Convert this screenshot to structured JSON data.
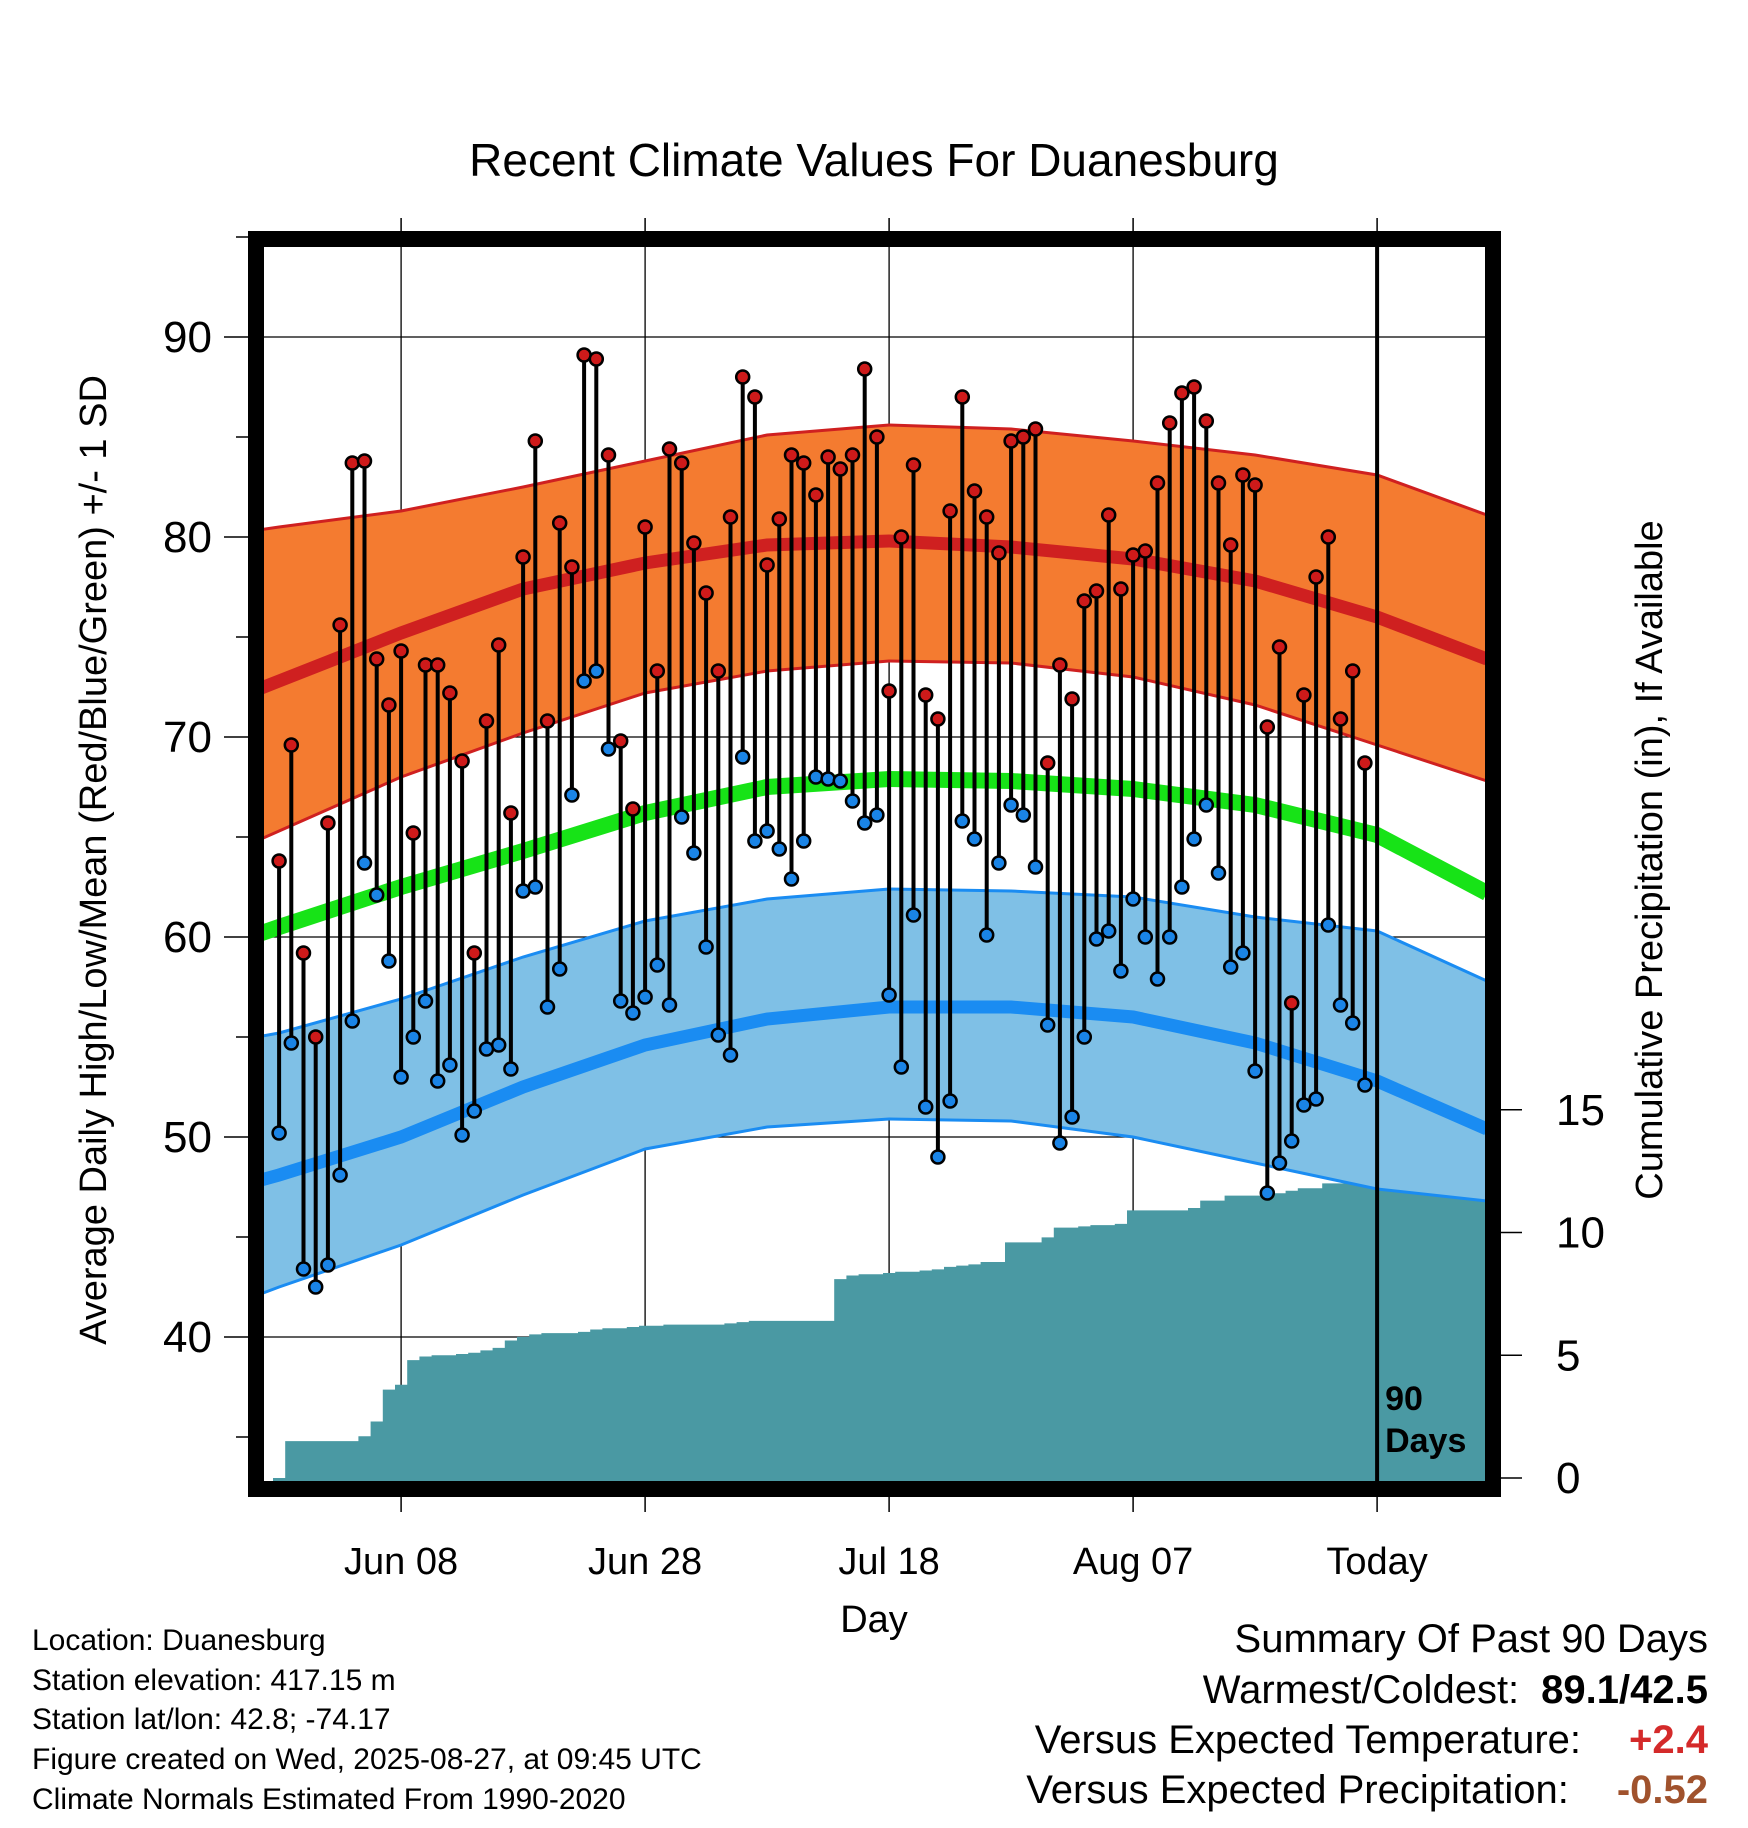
{
  "chart_data": {
    "type": "line",
    "title": "Recent Climate Values For Duanesburg",
    "xlabel": "Day",
    "ylabel": "Average Daily High/Low/Mean (Red/Blue/Green) +/- 1 SD",
    "y2label": "Cumulative Precipitation (in), If Available",
    "ylim": [
      33,
      95
    ],
    "y2lim": [
      0,
      29.4
    ],
    "yticks": [
      40,
      50,
      60,
      70,
      80,
      90
    ],
    "y2ticks": [
      0,
      5,
      10,
      15
    ],
    "xlim": [
      -10.3,
      91
    ],
    "xticks": [
      {
        "x": 10,
        "label": "Jun 08"
      },
      {
        "x": 30,
        "label": "Jun 28"
      },
      {
        "x": 50,
        "label": "Jul 18"
      },
      {
        "x": 70,
        "label": "Aug 07"
      },
      {
        "x": 90,
        "label": "Today"
      }
    ],
    "today_x": 90,
    "today_label": "90\nDays",
    "grid": true,
    "normals": {
      "x": [
        -10,
        0,
        10,
        20,
        30,
        40,
        50,
        60,
        70,
        80,
        90,
        99
      ],
      "high_upper": [
        79.6,
        80.5,
        81.3,
        82.5,
        83.8,
        85.1,
        85.6,
        85.4,
        84.8,
        84.1,
        83.1,
        81.1
      ],
      "high_mean": [
        70.4,
        72.8,
        75.2,
        77.4,
        78.7,
        79.6,
        79.8,
        79.5,
        78.9,
        77.8,
        76.0,
        73.9
      ],
      "high_lower": [
        62.6,
        65.3,
        68.0,
        70.2,
        72.2,
        73.3,
        73.8,
        73.7,
        73.0,
        71.6,
        69.6,
        67.8
      ],
      "mean": [
        58.4,
        60.5,
        62.5,
        64.3,
        66.2,
        67.5,
        67.9,
        67.8,
        67.4,
        66.6,
        65.1,
        62.2
      ],
      "low_upper": [
        54.1,
        55.2,
        56.9,
        59.0,
        60.8,
        61.9,
        62.4,
        62.3,
        62.0,
        61.0,
        60.3,
        57.8
      ],
      "low_mean": [
        46.4,
        48.1,
        50.0,
        52.5,
        54.6,
        55.9,
        56.5,
        56.5,
        56.0,
        54.7,
        52.8,
        50.4
      ],
      "low_lower": [
        40.2,
        42.5,
        44.6,
        47.1,
        49.4,
        50.5,
        50.9,
        50.8,
        50.0,
        48.7,
        47.4,
        46.8
      ]
    },
    "series": [
      {
        "name": "High",
        "color": "#ce1a1a",
        "x": [
          0,
          1,
          2,
          3,
          4,
          5,
          6,
          7,
          8,
          9,
          10,
          11,
          12,
          13,
          14,
          15,
          16,
          17,
          18,
          19,
          20,
          21,
          22,
          23,
          24,
          25,
          26,
          27,
          28,
          29,
          30,
          31,
          32,
          33,
          34,
          35,
          36,
          37,
          38,
          39,
          40,
          41,
          42,
          43,
          44,
          45,
          46,
          47,
          48,
          49,
          50,
          51,
          52,
          53,
          54,
          55,
          56,
          57,
          58,
          59,
          60,
          61,
          62,
          63,
          64,
          65,
          66,
          67,
          68,
          69,
          70,
          71,
          72,
          73,
          74,
          75,
          76,
          77,
          78,
          79,
          80,
          81,
          82,
          83,
          84,
          85,
          86,
          87,
          88,
          89
        ],
        "values": [
          63.8,
          69.6,
          59.2,
          55.0,
          65.7,
          75.6,
          83.7,
          83.8,
          73.9,
          71.6,
          74.3,
          65.2,
          73.6,
          73.6,
          72.2,
          68.8,
          59.2,
          70.8,
          74.6,
          66.2,
          79.0,
          84.8,
          70.8,
          80.7,
          78.5,
          89.1,
          88.9,
          84.1,
          69.8,
          66.4,
          80.5,
          73.3,
          84.4,
          83.7,
          79.7,
          77.2,
          73.3,
          81.0,
          88.0,
          87.0,
          78.6,
          80.9,
          84.1,
          83.7,
          82.1,
          84.0,
          83.4,
          84.1,
          88.4,
          85.0,
          72.3,
          80.0,
          83.6,
          72.1,
          70.9,
          81.3,
          87.0,
          82.3,
          81.0,
          79.2,
          84.8,
          85.0,
          85.4,
          68.7,
          73.6,
          71.9,
          76.8,
          77.3,
          81.1,
          77.4,
          79.1,
          79.3,
          82.7,
          85.7,
          87.2,
          87.5,
          85.8,
          82.7,
          79.6,
          83.1,
          82.6,
          70.5,
          74.5,
          56.7,
          72.1,
          78.0,
          80.0,
          70.9,
          73.3,
          68.7
        ]
      },
      {
        "name": "Low",
        "color": "#1a84e6",
        "x": [
          0,
          1,
          2,
          3,
          4,
          5,
          6,
          7,
          8,
          9,
          10,
          11,
          12,
          13,
          14,
          15,
          16,
          17,
          18,
          19,
          20,
          21,
          22,
          23,
          24,
          25,
          26,
          27,
          28,
          29,
          30,
          31,
          32,
          33,
          34,
          35,
          36,
          37,
          38,
          39,
          40,
          41,
          42,
          43,
          44,
          45,
          46,
          47,
          48,
          49,
          50,
          51,
          52,
          53,
          54,
          55,
          56,
          57,
          58,
          59,
          60,
          61,
          62,
          63,
          64,
          65,
          66,
          67,
          68,
          69,
          70,
          71,
          72,
          73,
          74,
          75,
          76,
          77,
          78,
          79,
          80,
          81,
          82,
          83,
          84,
          85,
          86,
          87,
          88,
          89
        ],
        "values": [
          50.2,
          54.7,
          43.4,
          42.5,
          43.6,
          48.1,
          55.8,
          63.7,
          62.1,
          58.8,
          53.0,
          55.0,
          56.8,
          52.8,
          53.6,
          50.1,
          51.3,
          54.4,
          54.6,
          53.4,
          62.3,
          62.5,
          56.5,
          58.4,
          67.1,
          72.8,
          73.3,
          69.4,
          56.8,
          56.2,
          57.0,
          58.6,
          56.6,
          66.0,
          64.2,
          59.5,
          55.1,
          54.1,
          69.0,
          64.8,
          65.3,
          64.4,
          62.9,
          64.8,
          68.0,
          67.9,
          67.8,
          66.8,
          65.7,
          66.1,
          57.1,
          53.5,
          61.1,
          51.5,
          49.0,
          51.8,
          65.8,
          64.9,
          60.1,
          63.7,
          66.6,
          66.1,
          63.5,
          55.6,
          49.7,
          51.0,
          55.0,
          59.9,
          60.3,
          58.3,
          61.9,
          60.0,
          57.9,
          60.0,
          62.5,
          64.9,
          66.6,
          63.2,
          58.5,
          59.2,
          53.3,
          47.2,
          48.7,
          49.8,
          51.6,
          51.9,
          60.6,
          56.6,
          55.7,
          52.6
        ]
      }
    ],
    "precip": {
      "x": [
        0,
        1,
        2,
        3,
        4,
        5,
        6,
        7,
        8,
        9,
        10,
        11,
        12,
        13,
        14,
        15,
        16,
        17,
        18,
        19,
        20,
        21,
        22,
        23,
        24,
        25,
        26,
        27,
        28,
        29,
        30,
        31,
        32,
        33,
        34,
        35,
        36,
        37,
        38,
        39,
        40,
        41,
        42,
        43,
        44,
        45,
        46,
        47,
        48,
        49,
        50,
        51,
        52,
        53,
        54,
        55,
        56,
        57,
        58,
        59,
        60,
        61,
        62,
        63,
        64,
        65,
        66,
        67,
        68,
        69,
        70,
        71,
        72,
        73,
        74,
        75,
        76,
        77,
        78,
        79,
        80,
        81,
        82,
        83,
        84,
        85,
        86,
        87,
        88,
        89,
        90,
        91,
        92,
        93,
        94,
        95,
        96,
        97,
        98,
        99
      ],
      "cumulative": [
        0,
        1.5,
        1.5,
        1.5,
        1.5,
        1.5,
        1.5,
        1.7,
        2.3,
        3.6,
        3.8,
        4.8,
        4.95,
        5.0,
        5.0,
        5.05,
        5.1,
        5.2,
        5.3,
        5.6,
        5.75,
        5.85,
        5.9,
        5.9,
        5.9,
        5.95,
        6.05,
        6.1,
        6.1,
        6.15,
        6.2,
        6.2,
        6.25,
        6.25,
        6.25,
        6.25,
        6.25,
        6.3,
        6.35,
        6.4,
        6.4,
        6.4,
        6.4,
        6.4,
        6.4,
        6.4,
        8.1,
        8.25,
        8.3,
        8.3,
        8.35,
        8.4,
        8.4,
        8.45,
        8.5,
        8.6,
        8.65,
        8.7,
        8.8,
        8.8,
        9.6,
        9.6,
        9.6,
        9.8,
        10.2,
        10.2,
        10.25,
        10.3,
        10.3,
        10.35,
        10.9,
        10.9,
        10.9,
        10.9,
        10.9,
        11.0,
        11.3,
        11.3,
        11.5,
        11.5,
        11.5,
        11.6,
        11.6,
        11.7,
        11.8,
        11.8,
        12.0,
        12.0,
        12.05,
        12.05,
        12.1,
        12.15,
        12.2,
        12.45,
        12.6,
        12.7,
        12.7,
        12.75,
        12.8,
        12.85
      ]
    }
  },
  "info": {
    "location": "Location: Duanesburg",
    "elevation": "Station elevation: 417.15 m",
    "latlon": "Station lat/lon: 42.8; -74.17",
    "created": "Figure created on Wed, 2025-08-27, at 09:45 UTC",
    "normals": "Climate Normals Estimated From 1990-2020"
  },
  "summary": {
    "heading": "Summary Of Past 90 Days",
    "warm_cold_label": "Warmest/Coldest:",
    "warm_cold_value": "89.1/42.5",
    "temp_label": "Versus Expected Temperature:",
    "temp_value": "+2.4",
    "temp_color": "#d42a2a",
    "precip_label": "Versus Expected Precipitation:",
    "precip_value": "-0.52",
    "precip_color": "#a0522d"
  },
  "colors": {
    "high_band": "#f47b30",
    "high_line": "#cf2020",
    "mean_line": "#17e317",
    "low_band": "#7fc0e6",
    "low_line": "#1a8cf2",
    "precip": "#4a99a3"
  }
}
